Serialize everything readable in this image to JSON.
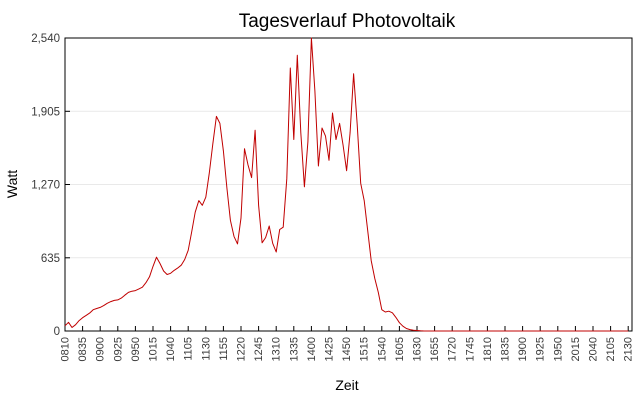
{
  "title": "Tagesverlauf Photovoltaik",
  "colors": {
    "line": "#c00000",
    "grid": "#e9e9e9",
    "axis": "#000000",
    "tick_text": "#3a3a3a",
    "title_text": "#000000",
    "background": "#ffffff"
  },
  "chart_data": {
    "type": "line",
    "title": "Tagesverlauf Photovoltaik",
    "xlabel": "Zeit",
    "ylabel": "Watt",
    "ylim": [
      0,
      2540
    ],
    "y_ticks": [
      0,
      635,
      1270,
      1905,
      2540
    ],
    "y_tick_labels": [
      "0",
      "635",
      "1,270",
      "1,905",
      "2,540"
    ],
    "grid": "horizontal gridlines at y ticks, light gray",
    "legend": "none",
    "x_tick_labels": [
      "0810",
      "0835",
      "0900",
      "0925",
      "0950",
      "1015",
      "1040",
      "1105",
      "1130",
      "1155",
      "1220",
      "1245",
      "1310",
      "1335",
      "1400",
      "1425",
      "1450",
      "1515",
      "1540",
      "1605",
      "1630",
      "1655",
      "1720",
      "1745",
      "1810",
      "1835",
      "1900",
      "1925",
      "1950",
      "2015",
      "2040",
      "2105",
      "2130"
    ],
    "x_tick_interval_minutes": 25,
    "sample_interval_minutes": 5,
    "series": [
      {
        "x": [
          "0810",
          "0815",
          "0820",
          "0825",
          "0830",
          "0835",
          "0840",
          "0845",
          "0850",
          "0855",
          "0900",
          "0905",
          "0910",
          "0915",
          "0920",
          "0925",
          "0930",
          "0935",
          "0940",
          "0945",
          "0950",
          "0955",
          "1000",
          "1005",
          "1010",
          "1015",
          "1020",
          "1025",
          "1030",
          "1035",
          "1040",
          "1045",
          "1050",
          "1055",
          "1100",
          "1105",
          "1110",
          "1115",
          "1120",
          "1125",
          "1130",
          "1135",
          "1140",
          "1145",
          "1150",
          "1155",
          "1200",
          "1205",
          "1210",
          "1215",
          "1220",
          "1225",
          "1230",
          "1235",
          "1240",
          "1245",
          "1250",
          "1255",
          "1300",
          "1305",
          "1310",
          "1315",
          "1320",
          "1325",
          "1330",
          "1335",
          "1340",
          "1345",
          "1350",
          "1355",
          "1400",
          "1405",
          "1410",
          "1415",
          "1420",
          "1425",
          "1430",
          "1435",
          "1440",
          "1445",
          "1450",
          "1455",
          "1500",
          "1505",
          "1510",
          "1515",
          "1520",
          "1525",
          "1530",
          "1535",
          "1540",
          "1545",
          "1550",
          "1555",
          "1600",
          "1605",
          "1610",
          "1615",
          "1620",
          "1625",
          "1630",
          "1635",
          "1640",
          "1645",
          "1650",
          "1655",
          "1700",
          "1705",
          "1710",
          "1715",
          "1720",
          "1725",
          "1730",
          "1735",
          "1740",
          "1745",
          "1750",
          "1755",
          "1800",
          "1805",
          "1810",
          "1815",
          "1820",
          "1825",
          "1830",
          "1835",
          "1840",
          "1845",
          "1850",
          "1855",
          "1900",
          "1905",
          "1910",
          "1915",
          "1920",
          "1925",
          "1930",
          "1935",
          "1940",
          "1945",
          "1950",
          "1955",
          "2000",
          "2005",
          "2010",
          "2015",
          "2020",
          "2025",
          "2030",
          "2035",
          "2040",
          "2045",
          "2050",
          "2055",
          "2100",
          "2105",
          "2110",
          "2115",
          "2120",
          "2125",
          "2130"
        ],
        "y": [
          45,
          75,
          30,
          55,
          90,
          115,
          135,
          155,
          185,
          195,
          205,
          220,
          240,
          255,
          265,
          270,
          285,
          310,
          335,
          345,
          350,
          365,
          380,
          420,
          470,
          560,
          640,
          585,
          520,
          490,
          500,
          525,
          545,
          570,
          620,
          700,
          860,
          1030,
          1130,
          1090,
          1160,
          1370,
          1620,
          1860,
          1800,
          1560,
          1240,
          960,
          820,
          755,
          980,
          1580,
          1440,
          1330,
          1740,
          1090,
          765,
          810,
          910,
          760,
          685,
          880,
          900,
          1320,
          2280,
          1660,
          2390,
          1720,
          1250,
          1640,
          2540,
          2080,
          1430,
          1760,
          1690,
          1480,
          1890,
          1660,
          1800,
          1610,
          1390,
          1720,
          2230,
          1790,
          1280,
          1130,
          870,
          610,
          455,
          335,
          185,
          165,
          172,
          158,
          118,
          72,
          42,
          22,
          12,
          6,
          4,
          2,
          0,
          0,
          0,
          0,
          0,
          0,
          0,
          0,
          0,
          0,
          0,
          0,
          0,
          0,
          0,
          0,
          0,
          0,
          0,
          0,
          0,
          0,
          0,
          0,
          0,
          0,
          0,
          0,
          0,
          0,
          0,
          0,
          0,
          0,
          0,
          0,
          0,
          0,
          0,
          0,
          0,
          0,
          0,
          0,
          0,
          0,
          0,
          0,
          0,
          0,
          0,
          0,
          0,
          0,
          0,
          0,
          0,
          0,
          0
        ]
      }
    ]
  }
}
